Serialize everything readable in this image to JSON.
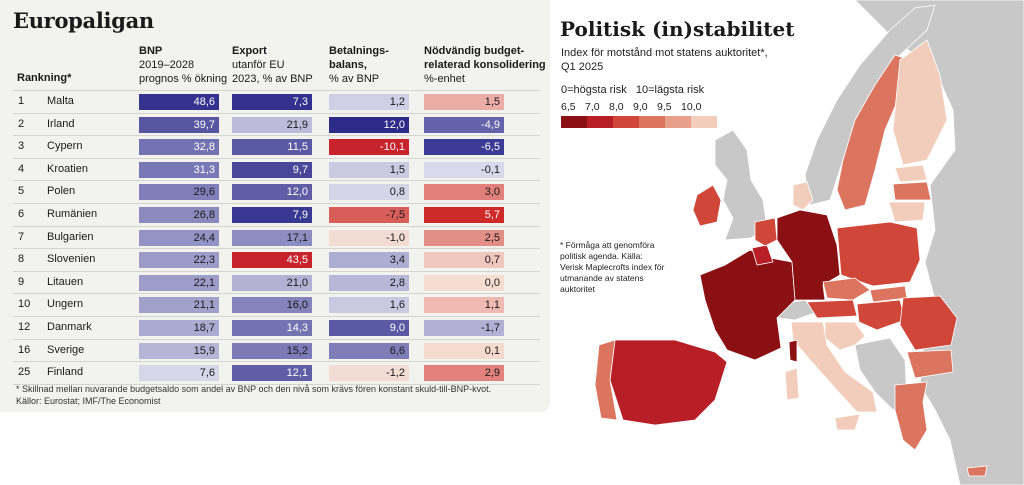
{
  "left": {
    "title": "Europaligan",
    "rank_header": "Rankning*",
    "headers": [
      {
        "l1": "BNP",
        "l2": "2019–2028",
        "l3": "prognos % ökning"
      },
      {
        "l1": "Export",
        "l2": "utanför EU",
        "l3": "2023, % av BNP"
      },
      {
        "l1": "Betalnings-",
        "l2": "balans,",
        "l3": "% av BNP"
      },
      {
        "l1": "Nödvändig budget-",
        "l2": "relaterad konsolidering",
        "l3": "%-enhet"
      }
    ],
    "footnote1": "* Skillnad mellan nuvarande budgetsaldo som andel av BNP och den nivå som krävs fören konstant skuld-till-BNP-kvot.",
    "footnote2": "Källor: Eurostat; IMF/The Economist"
  },
  "chart_data": {
    "type": "table",
    "columns": [
      "BNP 2019–2028 prognos % ökning",
      "Export utanför EU 2023, % av BNP",
      "Betalningsbalans, % av BNP",
      "Nödvändig budgetrelaterad konsolidering %-enhet"
    ],
    "rows": [
      {
        "rank": "1",
        "country": "Malta",
        "gdp": "48,6",
        "export": "7,3",
        "balance": "1,2",
        "consol": "1,5"
      },
      {
        "rank": "2",
        "country": "Irland",
        "gdp": "39,7",
        "export": "21,9",
        "balance": "12,0",
        "consol": "-4,9"
      },
      {
        "rank": "3",
        "country": "Cypern",
        "gdp": "32,8",
        "export": "11,5",
        "balance": "-10,1",
        "consol": "-6,5"
      },
      {
        "rank": "4",
        "country": "Kroatien",
        "gdp": "31,3",
        "export": "9,7",
        "balance": "1,5",
        "consol": "-0,1"
      },
      {
        "rank": "5",
        "country": "Polen",
        "gdp": "29,6",
        "export": "12,0",
        "balance": "0,8",
        "consol": "3,0"
      },
      {
        "rank": "6",
        "country": "Rumänien",
        "gdp": "26,8",
        "export": "7,9",
        "balance": "-7,5",
        "consol": "5,7"
      },
      {
        "rank": "7",
        "country": "Bulgarien",
        "gdp": "24,4",
        "export": "17,1",
        "balance": "-1,0",
        "consol": "2,5"
      },
      {
        "rank": "8",
        "country": "Slovenien",
        "gdp": "22,3",
        "export": "43,5",
        "balance": "3,4",
        "consol": "0,7"
      },
      {
        "rank": "9",
        "country": "Litauen",
        "gdp": "22,1",
        "export": "21,0",
        "balance": "2,8",
        "consol": "0,0"
      },
      {
        "rank": "10",
        "country": "Ungern",
        "gdp": "21,1",
        "export": "16,0",
        "balance": "1,6",
        "consol": "1,1"
      },
      {
        "rank": "12",
        "country": "Danmark",
        "gdp": "18,7",
        "export": "14,3",
        "balance": "9,0",
        "consol": "-1,7"
      },
      {
        "rank": "16",
        "country": "Sverige",
        "gdp": "15,9",
        "export": "15,2",
        "balance": "6,6",
        "consol": "0,1"
      },
      {
        "rank": "25",
        "country": "Finland",
        "gdp": "7,6",
        "export": "12,1",
        "balance": "-1,2",
        "consol": "2,9"
      }
    ]
  },
  "right": {
    "title": "Politisk (in)stabilitet",
    "subtitle1": "Index för motstånd mot statens auktoritet*,",
    "subtitle2": "Q1 2025",
    "legend_text": "0=högsta risk   10=lägsta risk",
    "legend_ticks": [
      "6,5",
      "7,0",
      "8,0",
      "9,0",
      "9,5",
      "10,0"
    ],
    "legend_colors": [
      "#8b1014",
      "#b81e25",
      "#d0473a",
      "#dc7560",
      "#e9a08a",
      "#f3cdbc"
    ],
    "note": "* Förmåga att genomföra politisk agenda. Källa: Verisk Maplecrofts index för utmanande av statens auktoritet"
  }
}
